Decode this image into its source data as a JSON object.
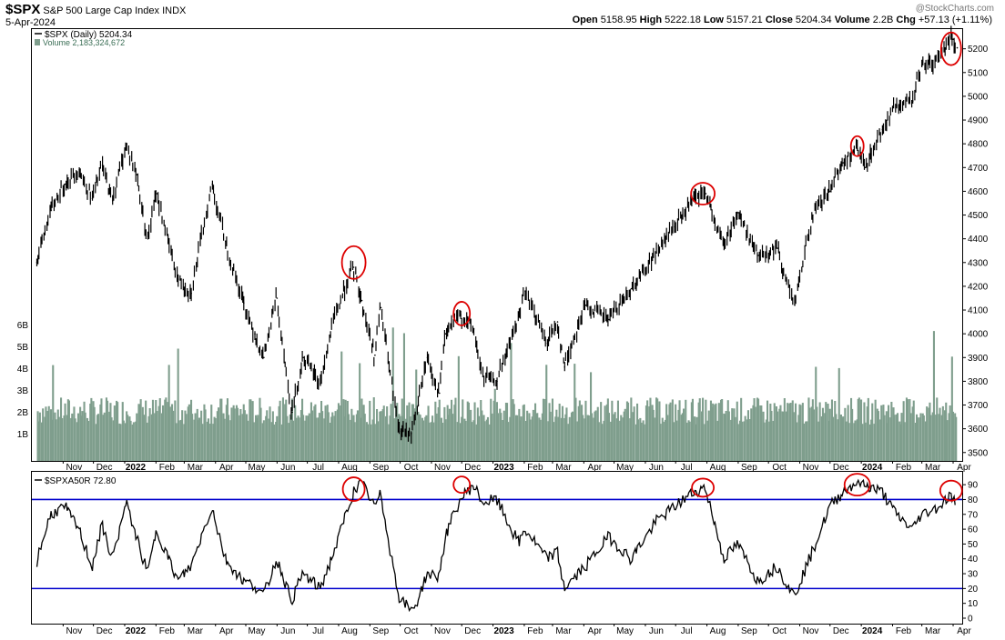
{
  "header": {
    "symbol": "$SPX",
    "name": "S&P 500 Large Cap Index",
    "exchange": "INDX",
    "date": "5-Apr-2024",
    "open_label": "Open",
    "open": "5158.95",
    "high_label": "High",
    "high": "5222.18",
    "low_label": "Low",
    "low": "5157.21",
    "close_label": "Close",
    "close": "5204.34",
    "volume_label": "Volume",
    "volume": "2.2B",
    "chg_label": "Chg",
    "chg": "+57.13 (+1.11%)",
    "watermark": "@StockCharts.com"
  },
  "colors": {
    "price": "#000000",
    "volume": "#7f9e8d",
    "indicator": "#000000",
    "level_lines": "#0000cc",
    "highlight_circles": "#dd0000",
    "legend_volume_text": "#3a6e55"
  },
  "chart_data": [
    {
      "type": "line",
      "title": "$SPX (Daily) 5204.34",
      "legend_volume": "Volume 2,183,324,672",
      "x_tick_labels": [
        "Nov",
        "Dec",
        "2022",
        "Feb",
        "Mar",
        "Apr",
        "May",
        "Jun",
        "Jul",
        "Aug",
        "Sep",
        "Oct",
        "Nov",
        "Dec",
        "2023",
        "Feb",
        "Mar",
        "Apr",
        "May",
        "Jun",
        "Jul",
        "Aug",
        "Sep",
        "Oct",
        "Nov",
        "Dec",
        "2024",
        "Feb",
        "Mar",
        "Apr"
      ],
      "y_ticks": [
        "5200",
        "5100",
        "5000",
        "4900",
        "4800",
        "4700",
        "4600",
        "4500",
        "4400",
        "4300",
        "4200",
        "4100",
        "4000",
        "3900",
        "3800",
        "3700",
        "3600",
        "3500"
      ],
      "ylim": [
        3480,
        5260
      ],
      "volume_ticks": [
        "6B",
        "5B",
        "4B",
        "3B",
        "2B",
        "1B"
      ],
      "series": [
        {
          "x": [
            "2021-10-06",
            "2021-10-20",
            "2021-11-03",
            "2021-11-17",
            "2021-11-30",
            "2021-12-10",
            "2021-12-20",
            "2022-01-03",
            "2022-01-13",
            "2022-01-24",
            "2022-02-02",
            "2022-02-23",
            "2022-03-08",
            "2022-03-29",
            "2022-04-11",
            "2022-04-29",
            "2022-05-10",
            "2022-05-19",
            "2022-06-01",
            "2022-06-16",
            "2022-06-27",
            "2022-07-14",
            "2022-07-28",
            "2022-08-16",
            "2022-08-24",
            "2022-09-06",
            "2022-09-12",
            "2022-09-30",
            "2022-10-12",
            "2022-10-19",
            "2022-10-28",
            "2022-11-09",
            "2022-11-15",
            "2022-11-30",
            "2022-12-13",
            "2022-12-22",
            "2023-01-05",
            "2023-01-27",
            "2023-02-02",
            "2023-02-24",
            "2023-03-06",
            "2023-03-13",
            "2023-04-03",
            "2023-04-26",
            "2023-05-18",
            "2023-06-12",
            "2023-06-30",
            "2023-07-19",
            "2023-07-31",
            "2023-08-18",
            "2023-09-01",
            "2023-09-21",
            "2023-10-10",
            "2023-10-27",
            "2023-11-14",
            "2023-12-01",
            "2023-12-14",
            "2023-12-28",
            "2024-01-05",
            "2024-01-22",
            "2024-02-05",
            "2024-02-21",
            "2024-03-01",
            "2024-03-18",
            "2024-03-28",
            "2024-04-01",
            "2024-04-05"
          ],
          "values": [
            4300,
            4520,
            4630,
            4690,
            4570,
            4710,
            4560,
            4800,
            4670,
            4400,
            4590,
            4230,
            4170,
            4630,
            4390,
            4130,
            4000,
            3900,
            4150,
            3670,
            3900,
            3790,
            4070,
            4280,
            4140,
            3910,
            4110,
            3590,
            3580,
            3700,
            3900,
            3750,
            4000,
            4080,
            4020,
            3820,
            3800,
            4070,
            4180,
            3960,
            4050,
            3860,
            4120,
            4060,
            4190,
            4340,
            4450,
            4560,
            4590,
            4370,
            4510,
            4330,
            4360,
            4120,
            4500,
            4600,
            4720,
            4780,
            4700,
            4860,
            4960,
            4980,
            5130,
            5150,
            5250,
            5240,
            5204
          ]
        }
      ],
      "annotations": "red circles marking local highs"
    },
    {
      "type": "line",
      "title": "$SPXA50R 72.80",
      "x_tick_labels": [
        "Nov",
        "Dec",
        "2022",
        "Feb",
        "Mar",
        "Apr",
        "May",
        "Jun",
        "Jul",
        "Aug",
        "Sep",
        "Oct",
        "Nov",
        "Dec",
        "2023",
        "Feb",
        "Mar",
        "Apr",
        "May",
        "Jun",
        "Jul",
        "Aug",
        "Sep",
        "Oct",
        "Nov",
        "Dec",
        "2024",
        "Feb",
        "Mar",
        "Apr"
      ],
      "y_ticks": [
        "90",
        "80",
        "70",
        "60",
        "50",
        "40",
        "30",
        "20",
        "10",
        "0"
      ],
      "ylim": [
        0,
        95
      ],
      "level_lines": [
        80,
        20
      ],
      "series": [
        {
          "x": [
            "2021-10-06",
            "2021-10-20",
            "2021-11-03",
            "2021-11-17",
            "2021-11-30",
            "2021-12-10",
            "2021-12-20",
            "2022-01-03",
            "2022-01-13",
            "2022-01-24",
            "2022-02-02",
            "2022-02-23",
            "2022-03-08",
            "2022-03-29",
            "2022-04-11",
            "2022-04-29",
            "2022-05-10",
            "2022-05-19",
            "2022-06-01",
            "2022-06-16",
            "2022-06-27",
            "2022-07-14",
            "2022-07-28",
            "2022-08-16",
            "2022-08-24",
            "2022-09-06",
            "2022-09-12",
            "2022-09-30",
            "2022-10-12",
            "2022-10-19",
            "2022-10-28",
            "2022-11-09",
            "2022-11-15",
            "2022-11-30",
            "2022-12-13",
            "2022-12-22",
            "2023-01-05",
            "2023-01-27",
            "2023-02-02",
            "2023-02-24",
            "2023-03-06",
            "2023-03-13",
            "2023-04-03",
            "2023-04-26",
            "2023-05-18",
            "2023-06-12",
            "2023-06-30",
            "2023-07-19",
            "2023-07-31",
            "2023-08-18",
            "2023-09-01",
            "2023-09-21",
            "2023-10-10",
            "2023-10-27",
            "2023-11-14",
            "2023-12-01",
            "2023-12-14",
            "2023-12-28",
            "2024-01-05",
            "2024-01-22",
            "2024-02-05",
            "2024-02-21",
            "2024-03-01",
            "2024-03-18",
            "2024-03-28",
            "2024-04-01",
            "2024-04-05"
          ],
          "values": [
            38,
            70,
            75,
            60,
            35,
            62,
            40,
            78,
            55,
            30,
            60,
            25,
            35,
            75,
            40,
            25,
            22,
            15,
            40,
            12,
            30,
            20,
            45,
            85,
            92,
            75,
            83,
            15,
            5,
            12,
            30,
            28,
            55,
            80,
            90,
            78,
            80,
            50,
            60,
            40,
            45,
            20,
            35,
            55,
            40,
            65,
            75,
            85,
            88,
            40,
            50,
            25,
            35,
            15,
            45,
            75,
            85,
            92,
            90,
            85,
            70,
            60,
            70,
            75,
            82,
            82,
            72.8
          ]
        }
      ]
    }
  ]
}
